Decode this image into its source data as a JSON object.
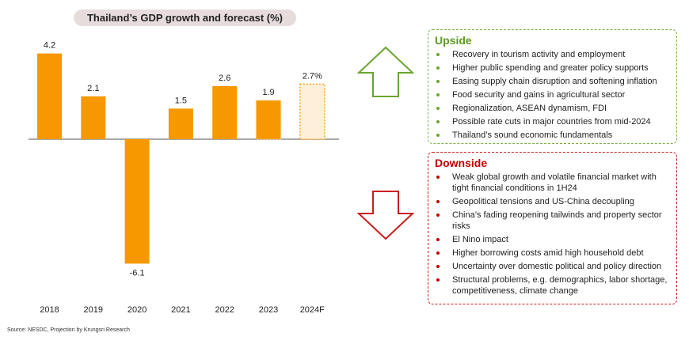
{
  "chart_data": {
    "type": "bar",
    "title": "Thailand’s GDP growth and forecast (%)",
    "categories": [
      "2018",
      "2019",
      "2020",
      "2021",
      "2022",
      "2023",
      "2024F"
    ],
    "values": [
      4.2,
      2.1,
      -6.1,
      1.5,
      2.6,
      1.9,
      2.7
    ],
    "labels": [
      "4.2",
      "2.1",
      "-6.1",
      "1.5",
      "2.6",
      "1.9",
      "2.7%"
    ],
    "bar_styles": [
      "solid",
      "solid",
      "solid",
      "solid",
      "solid",
      "dotted",
      "forecast"
    ],
    "colors": {
      "bar": "#f79800",
      "forecast_fill": "#fdefd9",
      "forecast_border": "#f5a623"
    },
    "grid": false,
    "legend": "none"
  },
  "upside": {
    "title": "Upside",
    "color": "#5e9a1f",
    "arrow_icon": "up-arrow-outline-icon",
    "items": [
      "Recovery in tourism activity and employment",
      "Higher public spending and greater policy supports",
      "Easing supply chain disruption and softening inflation",
      "Food security and gains in agricultural sector",
      "Regionalization, ASEAN dynamism, FDI",
      "Possible rate cuts in major countries from mid-2024",
      "Thailand’s sound economic fundamentals"
    ]
  },
  "downside": {
    "title": "Downside",
    "color": "#c00000",
    "arrow_icon": "down-arrow-outline-icon",
    "items": [
      "Weak global growth and volatile financial market with tight financial conditions in 1H24",
      "Geopolitical tensions and US-China decoupling",
      "China’s fading reopening tailwinds and property sector risks",
      "El Nino impact",
      "Higher borrowing costs amid high household debt",
      "Uncertainty over domestic political and policy direction",
      "Structural problems, e.g. demographics, labor shortage, competitiveness, climate change"
    ]
  },
  "source": "Source: NESDC, Projection by Krungsri Research"
}
